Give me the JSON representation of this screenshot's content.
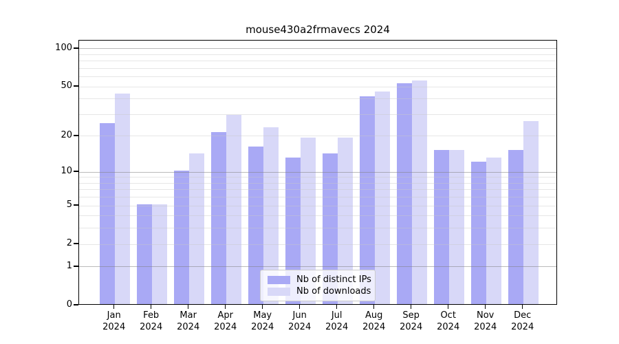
{
  "chart_data": {
    "type": "bar",
    "title": "mouse430a2frmavecs 2024",
    "categories": [
      "Jan 2024",
      "Feb 2024",
      "Mar 2024",
      "Apr 2024",
      "May 2024",
      "Jun 2024",
      "Jul 2024",
      "Aug 2024",
      "Sep 2024",
      "Oct 2024",
      "Nov 2024",
      "Dec 2024"
    ],
    "series": [
      {
        "name": "Nb of distinct IPs",
        "color": "#a9a9f5",
        "values": [
          25,
          5,
          10,
          21,
          16,
          13,
          14,
          41,
          52,
          15,
          12,
          15
        ]
      },
      {
        "name": "Nb of downloads",
        "color": "#d8d8f8",
        "values": [
          43,
          5,
          14,
          29,
          23,
          19,
          19,
          45,
          55,
          15,
          13,
          26
        ]
      }
    ],
    "y_scale": "log10(1+x)",
    "y_ticks": [
      100,
      50,
      20,
      10,
      5,
      2,
      1,
      0
    ],
    "y_minor_gridlines": [
      2,
      3,
      4,
      5,
      6,
      7,
      8,
      9,
      20,
      30,
      40,
      50,
      60,
      70,
      80,
      90
    ],
    "y_major_gridlines": [
      1,
      10,
      100
    ],
    "ylim": [
      0,
      117
    ],
    "grid": "horizontal",
    "legend_position": "bottom-center"
  },
  "colors": {
    "grid_major": "#b0b0b0",
    "grid_minor": "#e8e8e8",
    "axis": "#000000",
    "background": "#ffffff"
  }
}
